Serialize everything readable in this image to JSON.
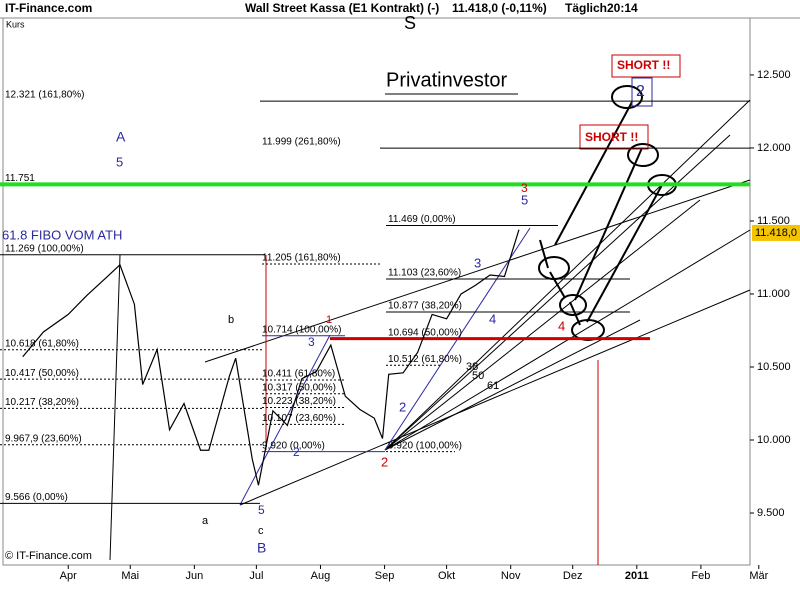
{
  "chart_data": {
    "type": "line",
    "header": [
      "IT-Finance.com",
      "Wall Street Kassa (E1 Kontrakt) (-)",
      "11.418,0 (-0,11%)",
      "Täglich",
      "20:14"
    ],
    "y_label": "Kurs",
    "subtitle": "Privatinvestor",
    "copyright": "© IT-Finance.com",
    "x": [
      69,
      79,
      91,
      100,
      110,
      116,
      123,
      127,
      134,
      140,
      147,
      155,
      159,
      169,
      172,
      180,
      183,
      190,
      197,
      204,
      211,
      218,
      225,
      232,
      239,
      243,
      246,
      253,
      260,
      267,
      274,
      281,
      288,
      295,
      302,
      309
    ],
    "series": [
      {
        "name": "Wall Street Kassa",
        "color": "#000000",
        "values": [
          10570,
          10740,
          10860,
          10990,
          11120,
          11200,
          10930,
          10380,
          10620,
          10070,
          10250,
          9930,
          9930,
          10440,
          10560,
          9870,
          9690,
          10200,
          10100,
          10420,
          10470,
          10650,
          10300,
          10210,
          10150,
          10010,
          10450,
          10460,
          10600,
          10860,
          10830,
          11000,
          11060,
          11130,
          11120,
          11440
        ]
      }
    ],
    "xlim": [
      58,
      428
    ],
    "xticks": [
      {
        "value": 91,
        "label": "Apr"
      },
      {
        "value": 121,
        "label": "Mai"
      },
      {
        "value": 152,
        "label": "Jun"
      },
      {
        "value": 182,
        "label": "Jul"
      },
      {
        "value": 213,
        "label": "Aug"
      },
      {
        "value": 244,
        "label": "Sep"
      },
      {
        "value": 274,
        "label": "Okt"
      },
      {
        "value": 305,
        "label": "Nov"
      },
      {
        "value": 335,
        "label": "Dez"
      },
      {
        "value": 366,
        "label": "2011"
      },
      {
        "value": 397,
        "label": "Feb"
      },
      {
        "value": 425,
        "label": "Mär"
      }
    ],
    "ylim": [
      9144,
      12890
    ],
    "yticks": [
      {
        "value": 9500,
        "label": "9.500"
      },
      {
        "value": 10000,
        "label": "10.000"
      },
      {
        "value": 10500,
        "label": "10.500"
      },
      {
        "value": 11000,
        "label": "11.000"
      },
      {
        "value": 11500,
        "label": "11.500"
      },
      {
        "value": 12000,
        "label": "12.000"
      },
      {
        "value": 12500,
        "label": "12.500"
      }
    ],
    "last_price": {
      "value": 11418,
      "label": "11.418,0"
    },
    "levels": [
      {
        "value": 12321,
        "label": "12.321 (161,80%)"
      },
      {
        "value": 11999,
        "label": "11.999 (261,80%)"
      },
      {
        "value": 11751,
        "label": "11.751"
      },
      {
        "value": 11469,
        "label": "11.469 (0,00%)"
      },
      {
        "value": 11269,
        "label": "11.269 (100,00%)"
      },
      {
        "value": 11205,
        "label": "11.205 (161,80%)"
      },
      {
        "value": 11103,
        "label": "11.103 (23,60%)"
      },
      {
        "value": 10877,
        "label": "10.877 (38,20%)"
      },
      {
        "value": 10714,
        "label": "10.714 (100,00%)"
      },
      {
        "value": 10694,
        "label": "10.694 (50,00%)"
      },
      {
        "value": 10618,
        "label": "10.618 (61,80%)"
      },
      {
        "value": 10512,
        "label": "10.512 (61,80%)"
      },
      {
        "value": 10417,
        "label": "10.417 (50,00%)"
      },
      {
        "value": 10411,
        "label": "10.411 (61,80%)"
      },
      {
        "value": 10317,
        "label": "10.317 (50,00%)"
      },
      {
        "value": 10223,
        "label": "10.223 (38,20%)"
      },
      {
        "value": 10217,
        "label": "10.217 (38,20%)"
      },
      {
        "value": 10107,
        "label": "10.107 (23,60%)"
      },
      {
        "value": 9967.9,
        "label": "9.967,9 (23,60%)"
      },
      {
        "value": 9920,
        "label": "9.920 (0,00%)"
      },
      {
        "value": 9920,
        "label": "9.920 (100,00%)"
      },
      {
        "value": 9566,
        "label": "9.566 (0,00%)"
      }
    ],
    "annotations": [
      "S",
      "SHORT !!",
      "SHORT !!",
      "2",
      "61.8 FIBO VOM ATH"
    ],
    "wave_labels": [
      "A",
      "5",
      "b",
      "a",
      "c",
      "B",
      "5",
      "1",
      "3",
      "2",
      "2",
      "2",
      "3",
      "4",
      "5",
      "3",
      "4",
      "38",
      "50",
      "61"
    ]
  }
}
